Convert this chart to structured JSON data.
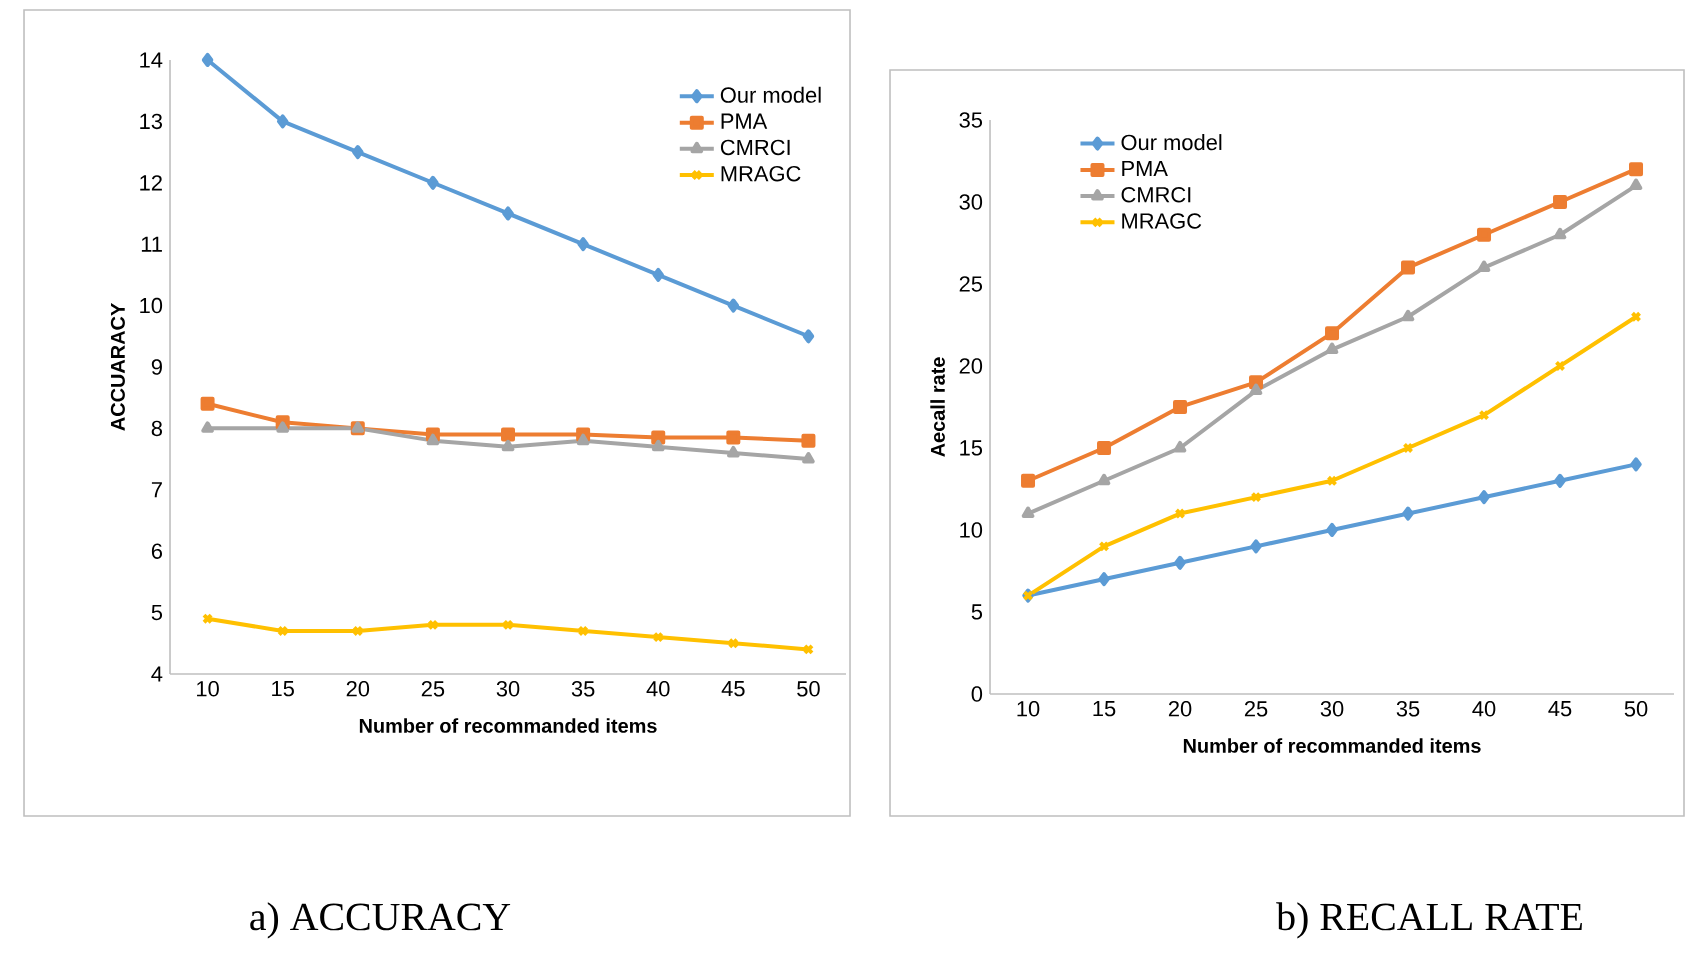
{
  "chart_data": [
    {
      "type": "line",
      "title": "a) ACCURACY",
      "xlabel": "Number of recommanded items",
      "ylabel": "ACCUARACY",
      "categories": [
        "10",
        "15",
        "20",
        "25",
        "30",
        "35",
        "40",
        "45",
        "50"
      ],
      "ylim": [
        4,
        14
      ],
      "yticks": [
        4,
        5,
        6,
        7,
        8,
        9,
        10,
        11,
        12,
        13,
        14
      ],
      "grid": false,
      "legend": "top right",
      "series": [
        {
          "name": "Our model",
          "color": "#5b9bd5",
          "marker": "diamond",
          "values": [
            14,
            13,
            12.5,
            12,
            11.5,
            11,
            10.5,
            10,
            9.5
          ]
        },
        {
          "name": "PMA",
          "color": "#ed7d31",
          "marker": "square",
          "values": [
            8.4,
            8.1,
            8,
            7.9,
            7.9,
            7.9,
            7.85,
            7.85,
            7.8
          ]
        },
        {
          "name": "CMRCI",
          "color": "#a5a5a5",
          "marker": "triangle",
          "values": [
            8,
            8,
            8,
            7.8,
            7.7,
            7.8,
            7.7,
            7.6,
            7.5
          ]
        },
        {
          "name": "MRAGC",
          "color": "#ffc000",
          "marker": "cross",
          "values": [
            4.9,
            4.7,
            4.7,
            4.8,
            4.8,
            4.7,
            4.6,
            4.5,
            4.4
          ]
        }
      ]
    },
    {
      "type": "line",
      "title": "b) RECALL RATE",
      "xlabel": "Number of recommanded items",
      "ylabel": "Aecall rate",
      "categories": [
        "10",
        "15",
        "20",
        "25",
        "30",
        "35",
        "40",
        "45",
        "50"
      ],
      "ylim": [
        0,
        35
      ],
      "yticks": [
        0,
        5,
        10,
        15,
        20,
        25,
        30,
        35
      ],
      "grid": false,
      "legend": "top left",
      "series": [
        {
          "name": "Our model",
          "color": "#5b9bd5",
          "marker": "diamond",
          "values": [
            6,
            7,
            8,
            9,
            10,
            11,
            12,
            13,
            14
          ]
        },
        {
          "name": "PMA",
          "color": "#ed7d31",
          "marker": "square",
          "values": [
            13,
            15,
            17.5,
            19,
            22,
            26,
            28,
            30,
            32
          ]
        },
        {
          "name": "CMRCI",
          "color": "#a5a5a5",
          "marker": "triangle",
          "values": [
            11,
            13,
            15,
            18.5,
            21,
            23,
            26,
            28,
            31
          ]
        },
        {
          "name": "MRAGC",
          "color": "#ffc000",
          "marker": "cross",
          "values": [
            6,
            9,
            11,
            12,
            13,
            15,
            17,
            20,
            23
          ]
        }
      ]
    }
  ]
}
